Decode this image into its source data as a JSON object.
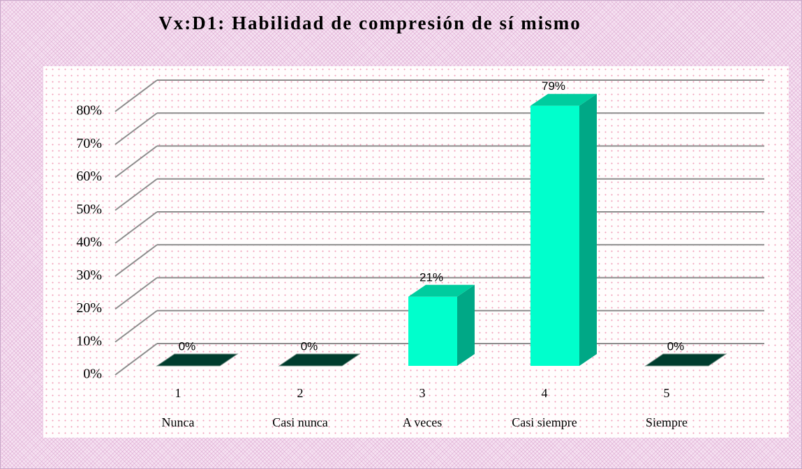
{
  "chart_data": {
    "type": "bar3d",
    "title": "Vx:D1: Habilidad de compresión de sí mismo",
    "categories": [
      "1",
      "2",
      "3",
      "4",
      "5"
    ],
    "category_labels": [
      "Nunca",
      "Casi nunca",
      "A veces",
      "Casi siempre",
      "Siempre"
    ],
    "values": [
      0,
      0,
      21,
      79,
      0
    ],
    "value_labels": [
      "0%",
      "0%",
      "21%",
      "79%",
      "0%"
    ],
    "color": "#00ffcc",
    "ylim": [
      0,
      80
    ],
    "yticks": [
      {
        "value": 0,
        "label": "0%"
      },
      {
        "value": 10,
        "label": "10%"
      },
      {
        "value": 20,
        "label": "20%"
      },
      {
        "value": 30,
        "label": "30%"
      },
      {
        "value": 40,
        "label": "40%"
      },
      {
        "value": 50,
        "label": "50%"
      },
      {
        "value": 60,
        "label": "60%"
      },
      {
        "value": 70,
        "label": "70%"
      },
      {
        "value": 80,
        "label": "80%"
      }
    ],
    "grid": true
  }
}
